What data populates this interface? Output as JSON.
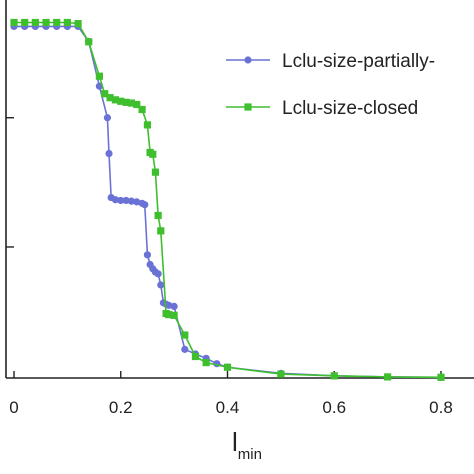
{
  "chart_data": {
    "type": "line",
    "xlabel": "l",
    "xlabel_subscript": "min",
    "ylabel": "",
    "xlim": [
      0,
      0.8
    ],
    "ylim": [
      0,
      1
    ],
    "x_ticks": [
      {
        "value": 0,
        "label": "0"
      },
      {
        "value": 0.2,
        "label": "0.2"
      },
      {
        "value": 0.4,
        "label": "0.4"
      },
      {
        "value": 0.6,
        "label": "0.6"
      },
      {
        "value": 0.8,
        "label": "0.8"
      }
    ],
    "y_ticks": [
      0.366,
      0.727
    ],
    "legend_position": "top-right",
    "grid": false,
    "series": [
      {
        "name": "Lclu-size-partially-",
        "color": "#6b72d6",
        "marker": "circle",
        "points": [
          [
            0.0,
            0.982
          ],
          [
            0.02,
            0.982
          ],
          [
            0.04,
            0.982
          ],
          [
            0.06,
            0.982
          ],
          [
            0.08,
            0.982
          ],
          [
            0.1,
            0.982
          ],
          [
            0.12,
            0.982
          ],
          [
            0.14,
            0.94
          ],
          [
            0.16,
            0.815
          ],
          [
            0.175,
            0.727
          ],
          [
            0.178,
            0.627
          ],
          [
            0.182,
            0.504
          ],
          [
            0.19,
            0.498
          ],
          [
            0.2,
            0.496
          ],
          [
            0.21,
            0.496
          ],
          [
            0.22,
            0.494
          ],
          [
            0.23,
            0.492
          ],
          [
            0.24,
            0.488
          ],
          [
            0.245,
            0.484
          ],
          [
            0.25,
            0.344
          ],
          [
            0.255,
            0.317
          ],
          [
            0.26,
            0.305
          ],
          [
            0.265,
            0.296
          ],
          [
            0.27,
            0.291
          ],
          [
            0.275,
            0.26
          ],
          [
            0.28,
            0.21
          ],
          [
            0.285,
            0.206
          ],
          [
            0.29,
            0.203
          ],
          [
            0.3,
            0.2
          ],
          [
            0.32,
            0.08
          ],
          [
            0.34,
            0.067
          ],
          [
            0.36,
            0.055
          ],
          [
            0.38,
            0.04
          ],
          [
            0.4,
            0.03
          ],
          [
            0.5,
            0.013
          ],
          [
            0.6,
            0.006
          ],
          [
            0.7,
            0.003
          ],
          [
            0.8,
            0.002
          ]
        ]
      },
      {
        "name": "Lclu-size-closed",
        "color": "#3fbf2e",
        "marker": "square",
        "points": [
          [
            0.0,
            0.993
          ],
          [
            0.02,
            0.993
          ],
          [
            0.04,
            0.993
          ],
          [
            0.06,
            0.993
          ],
          [
            0.08,
            0.993
          ],
          [
            0.1,
            0.993
          ],
          [
            0.12,
            0.99
          ],
          [
            0.14,
            0.939
          ],
          [
            0.16,
            0.843
          ],
          [
            0.17,
            0.794
          ],
          [
            0.18,
            0.783
          ],
          [
            0.19,
            0.777
          ],
          [
            0.2,
            0.773
          ],
          [
            0.21,
            0.77
          ],
          [
            0.22,
            0.768
          ],
          [
            0.23,
            0.764
          ],
          [
            0.24,
            0.75
          ],
          [
            0.25,
            0.707
          ],
          [
            0.255,
            0.63
          ],
          [
            0.26,
            0.625
          ],
          [
            0.265,
            0.575
          ],
          [
            0.27,
            0.454
          ],
          [
            0.275,
            0.411
          ],
          [
            0.285,
            0.18
          ],
          [
            0.29,
            0.177
          ],
          [
            0.3,
            0.175
          ],
          [
            0.32,
            0.12
          ],
          [
            0.34,
            0.06
          ],
          [
            0.36,
            0.043
          ],
          [
            0.4,
            0.03
          ],
          [
            0.5,
            0.011
          ],
          [
            0.6,
            0.006
          ],
          [
            0.7,
            0.003
          ],
          [
            0.8,
            0.002
          ]
        ]
      }
    ]
  }
}
